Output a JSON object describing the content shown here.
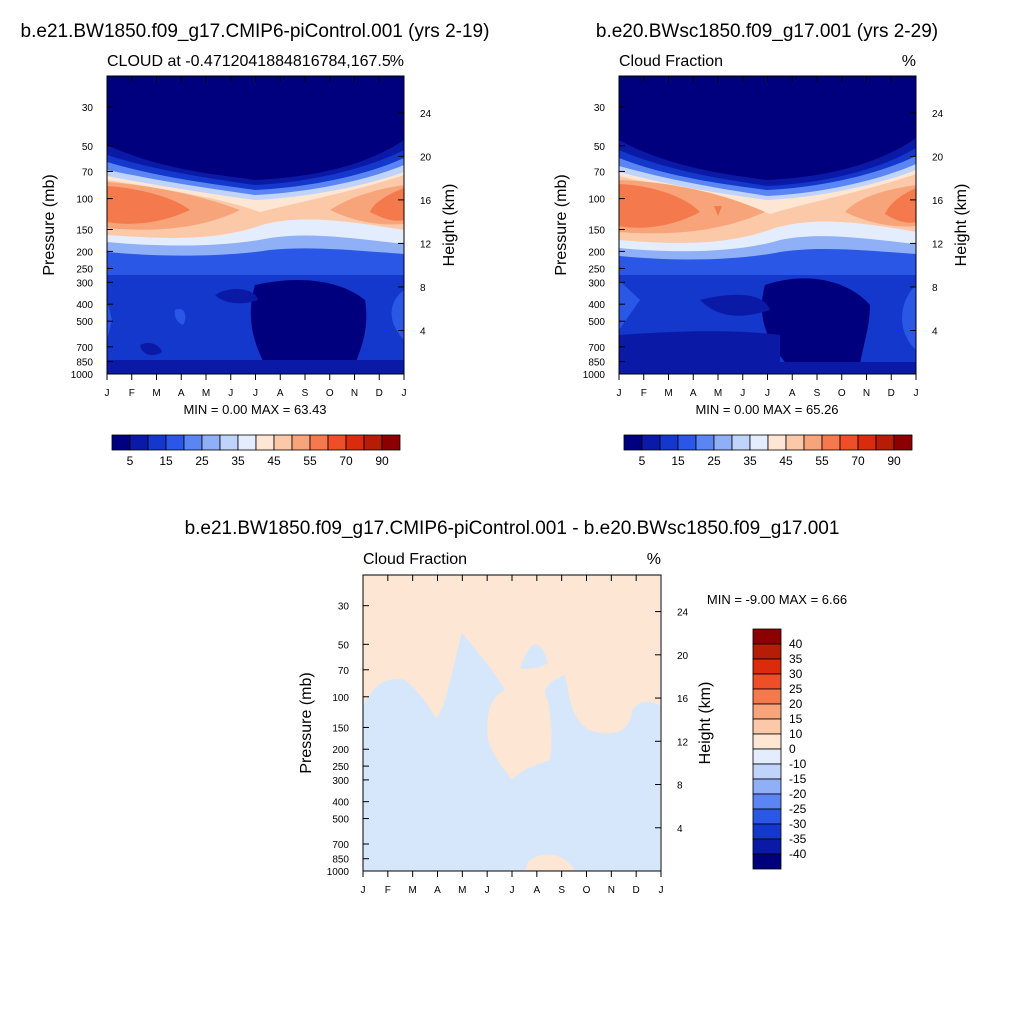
{
  "chart_data": [
    {
      "type": "heatmap",
      "title": "b.e21.BW1850.f09_g17.CMIP6-piControl.001 (yrs 2-19)",
      "left_label": "CLOUD at -0.4712041884816784,167.5",
      "units": "%",
      "ylabel": "Pressure (mb)",
      "ylabel_right": "Height (km)",
      "x_ticks": [
        "J",
        "F",
        "M",
        "A",
        "M",
        "J",
        "J",
        "A",
        "S",
        "O",
        "N",
        "D",
        "J"
      ],
      "y_ticks": [
        "30",
        "50",
        "70",
        "100",
        "150",
        "200",
        "250",
        "300",
        "400",
        "500",
        "700",
        "850",
        "1000"
      ],
      "y_ticks_right": [
        "24",
        "20",
        "16",
        "12",
        "8",
        "4"
      ],
      "ylim_mb": [
        20,
        1000
      ],
      "min_max_text": "MIN =   0.00 MAX =  63.43",
      "min": 0.0,
      "max": 63.43
    },
    {
      "type": "heatmap",
      "title": "b.e20.BWsc1850.f09_g17.001 (yrs 2-29)",
      "left_label": "Cloud Fraction",
      "units": "%",
      "ylabel": "Pressure (mb)",
      "ylabel_right": "Height (km)",
      "x_ticks": [
        "J",
        "F",
        "M",
        "A",
        "M",
        "J",
        "J",
        "A",
        "S",
        "O",
        "N",
        "D",
        "J"
      ],
      "y_ticks": [
        "30",
        "50",
        "70",
        "100",
        "150",
        "200",
        "250",
        "300",
        "400",
        "500",
        "700",
        "850",
        "1000"
      ],
      "y_ticks_right": [
        "24",
        "20",
        "16",
        "12",
        "8",
        "4"
      ],
      "ylim_mb": [
        20,
        1000
      ],
      "min_max_text": "MIN =   0.00 MAX =  65.26",
      "min": 0.0,
      "max": 65.26
    },
    {
      "type": "heatmap",
      "title": "b.e21.BW1850.f09_g17.CMIP6-piControl.001 - b.e20.BWsc1850.f09_g17.001",
      "left_label": "Cloud Fraction",
      "units": "%",
      "ylabel": "Pressure (mb)",
      "ylabel_right": "Height (km)",
      "x_ticks": [
        "J",
        "F",
        "M",
        "A",
        "M",
        "J",
        "J",
        "A",
        "S",
        "O",
        "N",
        "D",
        "J"
      ],
      "y_ticks": [
        "30",
        "50",
        "70",
        "100",
        "150",
        "200",
        "250",
        "300",
        "400",
        "500",
        "700",
        "850",
        "1000"
      ],
      "y_ticks_right": [
        "24",
        "20",
        "16",
        "12",
        "8",
        "4"
      ],
      "ylim_mb": [
        20,
        1000
      ],
      "min_max_text": "MIN =  -9.00 MAX =   6.66",
      "min": -9.0,
      "max": 6.66
    }
  ],
  "colorbar_abs": {
    "labels": [
      "5",
      "15",
      "25",
      "35",
      "45",
      "55",
      "70",
      "90"
    ],
    "colors": [
      "#00007f",
      "#0a1aa6",
      "#1437cc",
      "#2b57e6",
      "#5a85f2",
      "#8faff7",
      "#bfd3fb",
      "#e3edfd",
      "#fde6d4",
      "#fbc9a8",
      "#f8a47a",
      "#f47a4e",
      "#ee4e28",
      "#da2c0d",
      "#b71c06",
      "#8b0000"
    ]
  },
  "colorbar_diff": {
    "labels": [
      "40",
      "35",
      "30",
      "25",
      "20",
      "15",
      "10",
      "0",
      "-10",
      "-15",
      "-20",
      "-25",
      "-30",
      "-35",
      "-40"
    ],
    "colors": [
      "#8b0000",
      "#b71c06",
      "#da2c0d",
      "#ee4e28",
      "#f47a4e",
      "#f8a47a",
      "#fbc9a8",
      "#fde6d4",
      "#e3edfd",
      "#bfd3fb",
      "#8faff7",
      "#5a85f2",
      "#2b57e6",
      "#1437cc",
      "#0a1aa6",
      "#00007f"
    ]
  },
  "palette": {
    "deep_blue": "#00007f",
    "mid_blue": "#2b57e6",
    "pale_blue": "#d6e7fb",
    "pale_orange": "#fde6d4",
    "orange": "#f47a4e",
    "red": "#ee4e28"
  }
}
